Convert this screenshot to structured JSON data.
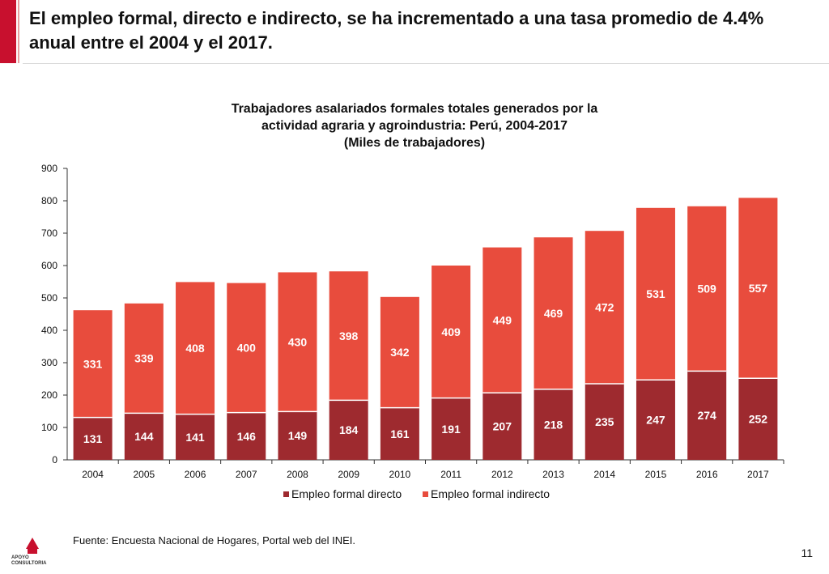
{
  "header": {
    "title": "El empleo formal, directo e indirecto, se ha incrementado a una tasa promedio de 4.4% anual entre el 2004 y el 2017."
  },
  "colors": {
    "accent": "#c8102e",
    "directo": "#9e2a2f",
    "indirecto": "#e84c3d"
  },
  "chart_data": {
    "type": "bar",
    "stacked": true,
    "title_lines": [
      "Trabajadores asalariados formales totales generados por la",
      "actividad agraria y agroindustria: Perú, 2004-2017",
      "(Miles de trabajadores)"
    ],
    "categories": [
      "2004",
      "2005",
      "2006",
      "2007",
      "2008",
      "2009",
      "2010",
      "2011",
      "2012",
      "2013",
      "2014",
      "2015",
      "2016",
      "2017"
    ],
    "series": [
      {
        "name": "Empleo formal directo",
        "color": "#9e2a2f",
        "values": [
          131,
          144,
          141,
          146,
          149,
          184,
          161,
          191,
          207,
          218,
          235,
          247,
          274,
          252
        ]
      },
      {
        "name": "Empleo formal indirecto",
        "color": "#e84c3d",
        "values": [
          331,
          339,
          408,
          400,
          430,
          398,
          342,
          409,
          449,
          469,
          472,
          531,
          509,
          557
        ]
      }
    ],
    "ylim": [
      0,
      900
    ],
    "yticks": [
      0,
      100,
      200,
      300,
      400,
      500,
      600,
      700,
      800,
      900
    ],
    "legend_position": "bottom-center",
    "grid": false
  },
  "footer": {
    "source": "Fuente: Encuesta Nacional de Hogares, Portal web del INEI.",
    "page_number": "11",
    "logo_text_1": "APOYO",
    "logo_text_2": "CONSULTORIA"
  }
}
